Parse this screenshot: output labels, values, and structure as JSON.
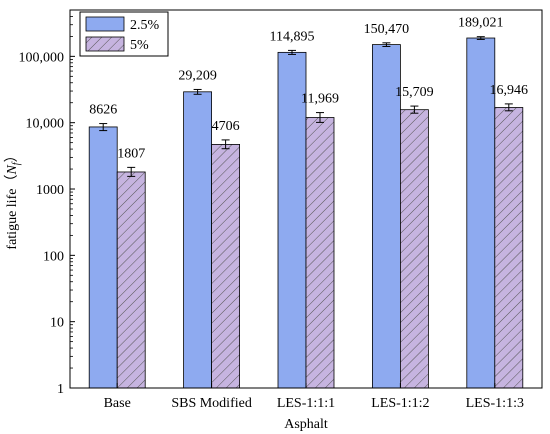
{
  "chart_data": {
    "type": "bar",
    "xlabel": "Asphalt",
    "ylabel_prefix": "fatigue life（",
    "ylabel_symbol": "N",
    "ylabel_subscript": "f",
    "ylabel_suffix": "）",
    "y_scale": "log",
    "ylim": [
      1,
      500000
    ],
    "yticks": [
      1,
      10,
      100,
      1000,
      10000,
      100000
    ],
    "ytick_labels": [
      "1",
      "10",
      "100",
      "1000",
      "10,000",
      "100,000"
    ],
    "categories": [
      "Base",
      "SBS Modified",
      "LES-1:1:1",
      "LES-1:1:2",
      "LES-1:1:3"
    ],
    "series": [
      {
        "name": "2.5%",
        "values": [
          8626,
          29209,
          114895,
          150470,
          189021
        ],
        "labels": [
          "8626",
          "29,209",
          "114,895",
          "150,470",
          "189,021"
        ],
        "error_low": [
          7600,
          26800,
          107000,
          141000,
          180000
        ],
        "error_high": [
          9700,
          31700,
          123000,
          160000,
          198000
        ],
        "color": "#8eaaf0",
        "pattern": "solid"
      },
      {
        "name": "5%",
        "values": [
          1807,
          4706,
          11969,
          15709,
          16946
        ],
        "labels": [
          "1807",
          "4706",
          "11,969",
          "15,709",
          "16,946"
        ],
        "error_low": [
          1550,
          4050,
          10100,
          13900,
          15100
        ],
        "error_high": [
          2120,
          5500,
          14200,
          17800,
          19200
        ],
        "color": "#c6b4e0",
        "pattern": "hatched"
      }
    ],
    "legend_position": "top-left",
    "grid": false
  }
}
